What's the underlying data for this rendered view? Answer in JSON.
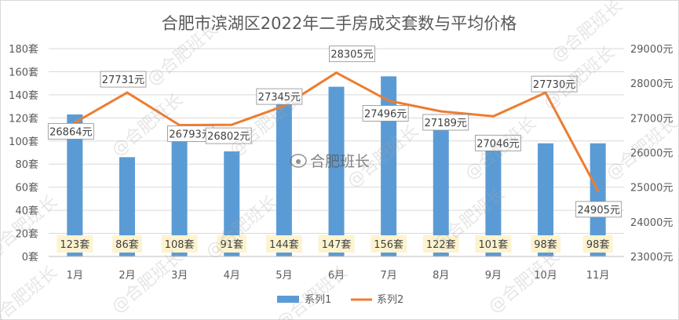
{
  "chart_data": {
    "type": "bar",
    "title": "合肥市滨湖区2022年二手房成交套数与平均价格",
    "categories": [
      "1月",
      "2月",
      "3月",
      "4月",
      "5月",
      "6月",
      "7月",
      "8月",
      "9月",
      "10月",
      "11月"
    ],
    "series": [
      {
        "name": "系列1",
        "type": "bar",
        "axis": "left",
        "values": [
          123,
          86,
          108,
          91,
          144,
          147,
          156,
          122,
          101,
          98,
          98
        ],
        "labels": [
          "123套",
          "86套",
          "108套",
          "91套",
          "144套",
          "147套",
          "156套",
          "122套",
          "101套",
          "98套",
          "98套"
        ],
        "color": "#5b9bd5"
      },
      {
        "name": "系列2",
        "type": "line",
        "axis": "right",
        "values": [
          26864,
          27731,
          26793,
          26802,
          27345,
          28305,
          27496,
          27189,
          27046,
          27730,
          24905
        ],
        "labels": [
          "26864元",
          "27731元",
          "26793元",
          "26802元",
          "27345元",
          "28305元",
          "27496元",
          "27189元",
          "27046元",
          "27730元",
          "24905元"
        ],
        "color": "#ed7d31"
      }
    ],
    "y_left": {
      "range": [
        0,
        180
      ],
      "ticks": [
        "0套",
        "20套",
        "40套",
        "60套",
        "80套",
        "100套",
        "120套",
        "140套",
        "160套",
        "180套"
      ]
    },
    "y_right": {
      "range": [
        23000,
        29000
      ],
      "ticks": [
        "23000元",
        "24000元",
        "25000元",
        "26000元",
        "27000元",
        "28000元",
        "29000元"
      ]
    },
    "grid": true,
    "legend": "bottom",
    "watermark": "@合肥班长",
    "center_watermark": "合肥班长"
  }
}
